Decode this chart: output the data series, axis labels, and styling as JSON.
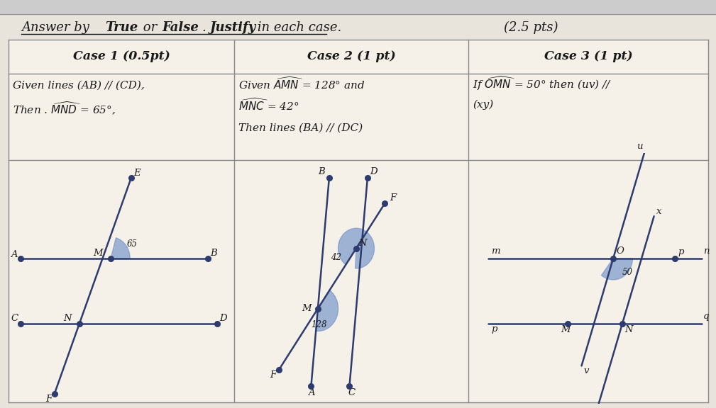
{
  "bg_color": "#e8e4dc",
  "table_bg": "#f5f1e8",
  "line_color": "#2d3b6e",
  "text_color": "#1a1a1a",
  "angle_fill": "#7090c8",
  "title1": "Answer by ",
  "title2": "True",
  "title3": " or ",
  "title4": "False",
  "title5": ". ",
  "title6": "Justify",
  "title7": " in each case.",
  "title_pts": "(2.5 pts)",
  "case1_header": "Case 1 (0.5pt)",
  "case2_header": "Case 2 (1 pt)",
  "case3_header": "Case 3 (1 pt)",
  "case1_line1": "Given lines (AB) // (CD),",
  "case1_line2": "Then . MND = 65°,",
  "case2_line1": "Given AMN = 128° and",
  "case2_line2": "MNC = 42°",
  "case2_line3": "Then lines (BA) // (DC)",
  "case3_line1": "If OMN = 50° then (uv) //",
  "case3_line2": "(xy)"
}
